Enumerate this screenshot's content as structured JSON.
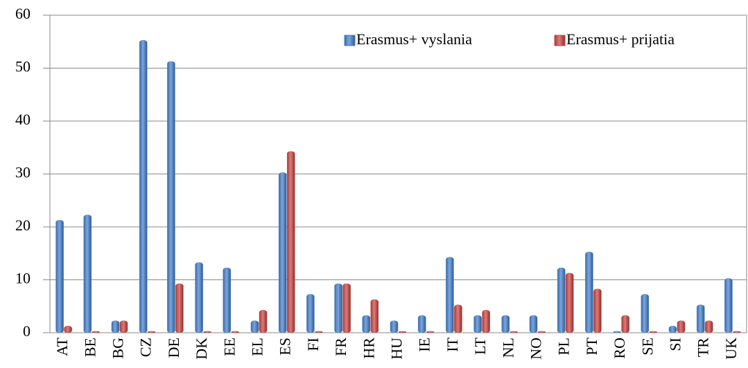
{
  "chart_data": {
    "type": "bar",
    "categories": [
      "AT",
      "BE",
      "BG",
      "CZ",
      "DE",
      "DK",
      "EE",
      "EL",
      "ES",
      "FI",
      "FR",
      "HR",
      "HU",
      "IE",
      "IT",
      "LT",
      "NL",
      "NO",
      "PL",
      "PT",
      "RO",
      "SE",
      "SI",
      "TR",
      "UK"
    ],
    "series": [
      {
        "name": "Erasmus+ vyslania",
        "color": "#4a7ebb",
        "values": [
          21,
          22,
          2,
          55,
          51,
          13,
          12,
          2,
          30,
          7,
          9,
          3,
          2,
          3,
          14,
          3,
          3,
          3,
          12,
          15,
          0,
          7,
          1,
          5,
          10
        ]
      },
      {
        "name": "Erasmus+ prijatia",
        "color": "#be4b48",
        "values": [
          1,
          0,
          2,
          0,
          9,
          0,
          0,
          4,
          34,
          0,
          9,
          6,
          0,
          0,
          5,
          4,
          0,
          0,
          11,
          8,
          3,
          0,
          2,
          2,
          0
        ]
      }
    ],
    "ylim": [
      0,
      60
    ],
    "yticks": [
      0,
      10,
      20,
      30,
      40,
      50,
      60
    ],
    "grid": true,
    "legend": "top-right"
  }
}
